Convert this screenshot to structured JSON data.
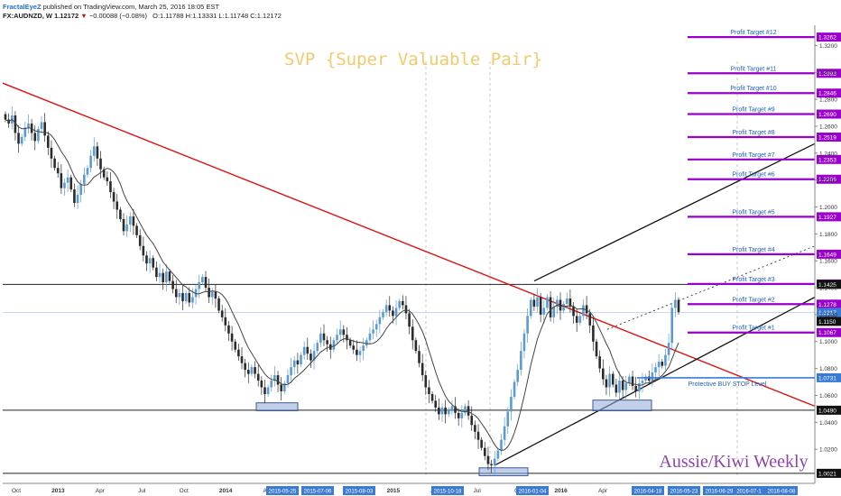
{
  "header": {
    "author": "FractalEyeZ",
    "published": "published on TradingView.com, March 25, 2016 18:05 EST",
    "symbol_line": "FX:AUDNZD, W  1.12172",
    "change": "−0.00088 (−0.08%)",
    "ohlc": "O:1.11788  H:1.13331  L:1.11748  C:1.12172"
  },
  "title": "SVP {Super Valuable Pair}",
  "watermark": "Aussie/Kiwi Weekly",
  "colors": {
    "up": "#5b9bd5",
    "down": "#2b2b2b",
    "ma": "#444444",
    "downtrend": "#e01010",
    "targets": "#9900cc",
    "stop": "#3a7bd5",
    "title": "#f5c96b",
    "watermark": "#8e44ad",
    "box": "#8fa9d8"
  },
  "axis": {
    "y_ticks": [
      "1.3200",
      "1.3000",
      "1.2800",
      "1.2600",
      "1.2400",
      "1.2200",
      "1.2000",
      "1.1800",
      "1.1600",
      "1.1400",
      "1.1200",
      "1.1000",
      "1.0800",
      "1.0600",
      "1.0400",
      "1.0200"
    ],
    "x_ticks": [
      "Oct",
      "2013",
      "Apr",
      "Jul",
      "Oct",
      "2014",
      "Apr",
      "Jul",
      "Oct",
      "2015",
      "Apr",
      "Jul",
      "Oct",
      "2016",
      "Apr"
    ],
    "x_highlight": [
      "2015-05-25",
      "2015-07-06",
      "2015-08-03",
      "2015-10-18",
      "2016-01-04",
      "2016-04-18",
      "2016-05-23",
      "2016-06-29",
      "2016-07-1",
      "2016-08-08"
    ],
    "price_labels": [
      {
        "text": "1.3262",
        "kind": "target"
      },
      {
        "text": "1.2993",
        "kind": "target"
      },
      {
        "text": "1.2846",
        "kind": "target"
      },
      {
        "text": "1.2690",
        "kind": "target"
      },
      {
        "text": "1.2519",
        "kind": "target"
      },
      {
        "text": "1.2353",
        "kind": "target"
      },
      {
        "text": "1.2206",
        "kind": "target"
      },
      {
        "text": "1.1927",
        "kind": "target"
      },
      {
        "text": "1.1649",
        "kind": "target"
      },
      {
        "text": "1.1428",
        "kind": "target"
      },
      {
        "text": "1.1425",
        "kind": "black"
      },
      {
        "text": "1.1278",
        "kind": "target"
      },
      {
        "text": "1.1217",
        "kind": "blue"
      },
      {
        "text": "1.1150",
        "kind": "black"
      },
      {
        "text": "1.1067",
        "kind": "target"
      },
      {
        "text": "1.0731",
        "kind": "stop"
      },
      {
        "text": "1.0490",
        "kind": "black"
      },
      {
        "text": "1.0021",
        "kind": "black"
      }
    ]
  },
  "annotations": {
    "profit_targets": [
      "Profit Target #12",
      "Profit Target #11",
      "Profit Target #10",
      "Profit Target #9",
      "Profit Target #8",
      "Profit Target #7",
      "Profit Target #6",
      "Profit Target #5",
      "Profit Target #4",
      "Profit Target #3",
      "Profit Target #2",
      "Profit Target #1"
    ],
    "stop_label": "Protective BUY STOP Level"
  },
  "chart_data": {
    "type": "candlestick",
    "symbol": "FX:AUDNZD",
    "interval": "W",
    "title": "SVP {Super Valuable Pair}",
    "ylim": [
      1.0,
      1.335
    ],
    "x_range": [
      "2012-09",
      "2016-09"
    ],
    "profit_targets": [
      1.1067,
      1.1278,
      1.1428,
      1.1649,
      1.1927,
      1.2206,
      1.2353,
      1.2519,
      1.269,
      1.2846,
      1.2993,
      1.3262
    ],
    "protective_buy_stop": 1.0731,
    "horizontal_levels": [
      1.1425,
      1.049,
      1.0021
    ],
    "last_price": 1.1217,
    "ohlc_last": {
      "open": 1.11788,
      "high": 1.13331,
      "low": 1.11748,
      "close": 1.12172
    },
    "close_series": [
      1.265,
      1.262,
      1.268,
      1.255,
      1.247,
      1.252,
      1.259,
      1.262,
      1.255,
      1.249,
      1.258,
      1.263,
      1.253,
      1.244,
      1.236,
      1.229,
      1.225,
      1.214,
      1.218,
      1.222,
      1.213,
      1.203,
      1.209,
      1.217,
      1.224,
      1.229,
      1.238,
      1.245,
      1.236,
      1.228,
      1.222,
      1.219,
      1.211,
      1.204,
      1.198,
      1.191,
      1.182,
      1.187,
      1.193,
      1.186,
      1.179,
      1.171,
      1.164,
      1.158,
      1.162,
      1.155,
      1.148,
      1.151,
      1.144,
      1.152,
      1.145,
      1.139,
      1.133,
      1.136,
      1.13,
      1.136,
      1.129,
      1.133,
      1.139,
      1.144,
      1.148,
      1.14,
      1.133,
      1.137,
      1.132,
      1.123,
      1.118,
      1.112,
      1.106,
      1.1,
      1.094,
      1.089,
      1.084,
      1.079,
      1.076,
      1.081,
      1.076,
      1.071,
      1.066,
      1.061,
      1.066,
      1.071,
      1.075,
      1.068,
      1.063,
      1.069,
      1.075,
      1.081,
      1.086,
      1.083,
      1.09,
      1.096,
      1.091,
      1.086,
      1.093,
      1.099,
      1.106,
      1.101,
      1.098,
      1.094,
      1.101,
      1.105,
      1.109,
      1.105,
      1.101,
      1.097,
      1.094,
      1.09,
      1.093,
      1.097,
      1.101,
      1.106,
      1.109,
      1.113,
      1.118,
      1.122,
      1.127,
      1.123,
      1.119,
      1.125,
      1.13,
      1.127,
      1.121,
      1.111,
      1.101,
      1.093,
      1.084,
      1.075,
      1.066,
      1.061,
      1.056,
      1.051,
      1.046,
      1.051,
      1.046,
      1.049,
      1.052,
      1.047,
      1.043,
      1.047,
      1.052,
      1.045,
      1.038,
      1.033,
      1.027,
      1.021,
      1.015,
      1.009,
      1.008,
      1.013,
      1.019,
      1.027,
      1.037,
      1.048,
      1.059,
      1.07,
      1.079,
      1.093,
      1.106,
      1.119,
      1.131,
      1.126,
      1.133,
      1.12,
      1.125,
      1.133,
      1.118,
      1.126,
      1.131,
      1.123,
      1.128,
      1.132,
      1.126,
      1.119,
      1.114,
      1.119,
      1.127,
      1.121,
      1.112,
      1.1,
      1.089,
      1.08,
      1.072,
      1.066,
      1.076,
      1.068,
      1.062,
      1.071,
      1.064,
      1.069,
      1.074,
      1.067,
      1.063,
      1.069,
      1.071,
      1.074,
      1.071,
      1.077,
      1.081,
      1.085,
      1.082,
      1.09,
      1.099,
      1.125,
      1.131,
      1.122
    ]
  }
}
